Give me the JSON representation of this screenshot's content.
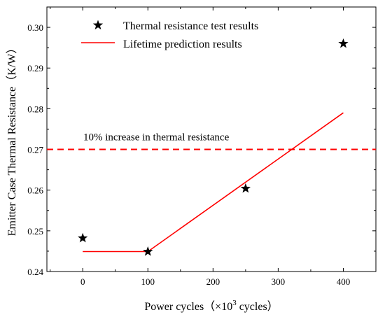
{
  "chart_data": {
    "type": "scatter",
    "xlabel": "Power cycles（×10",
    "xlabel_sup": "3",
    "xlabel_tail": " cycles）",
    "ylabel": "Emitter Case Thermal Resistance（K/W）",
    "xlim": [
      -55,
      450
    ],
    "ylim": [
      0.24,
      0.305
    ],
    "xticks": [
      0,
      100,
      200,
      300,
      400
    ],
    "yticks": [
      0.24,
      0.25,
      0.26,
      0.27,
      0.28,
      0.29,
      0.3
    ],
    "ytick_labels": [
      "0.24",
      "0.25",
      "0.26",
      "0.27",
      "0.28",
      "0.29",
      "0.30"
    ],
    "grid": false,
    "legend_position": "top-left",
    "series": [
      {
        "name": "Thermal resistance test results",
        "kind": "scatter",
        "marker": "star",
        "color": "#000000",
        "x": [
          0,
          100,
          250,
          400
        ],
        "y": [
          0.2482,
          0.2449,
          0.2604,
          0.296
        ]
      },
      {
        "name": "Lifetime prediction results",
        "kind": "line",
        "color": "#ff0000",
        "x": [
          0,
          100,
          400
        ],
        "y": [
          0.2449,
          0.2449,
          0.279
        ]
      }
    ],
    "threshold": {
      "y": 0.27,
      "label": "10% increase in thermal resistance",
      "color": "#ff0000",
      "style": "dashed"
    }
  }
}
